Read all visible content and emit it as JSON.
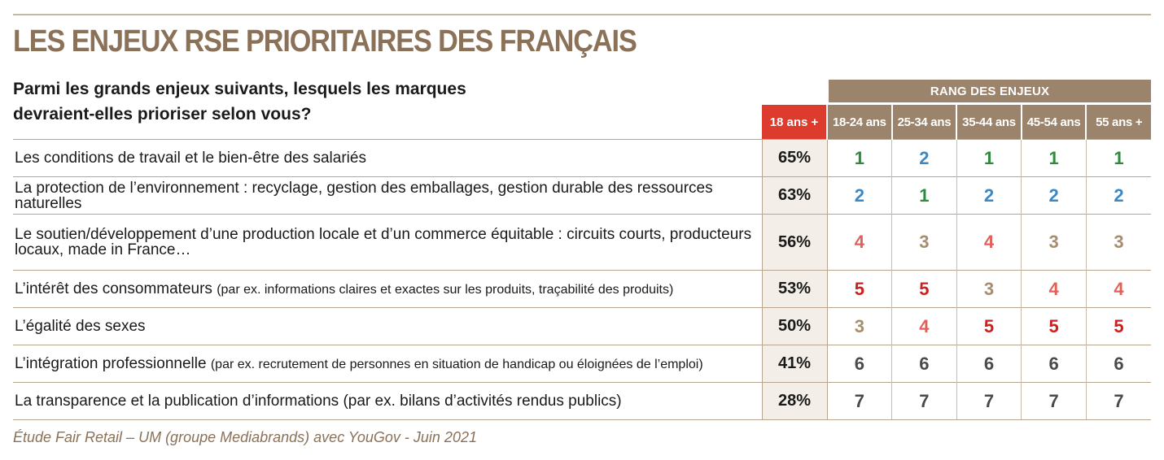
{
  "title": "LES ENJEUX RSE PRIORITAIRES DES FRANÇAIS",
  "question": "Parmi les grands enjeux suivants, lesquels les marques devraient-elles prioriser selon vous?",
  "rank_header": "RANG DES ENJEUX",
  "columns": {
    "total": "18 ans +",
    "age_groups": [
      "18-24 ans",
      "25-34 ans",
      "35-44 ans",
      "45-54 ans",
      "55 ans +"
    ]
  },
  "colors": {
    "title": "#8a7158",
    "header_total": "#dc3b2e",
    "header_rank": "#9b846b",
    "rank_1": "#2e8b3e",
    "rank_2": "#3a88c4",
    "rank_3": "#a68d6e",
    "rank_4": "#e0605a",
    "rank_5": "#cc1f1f",
    "rank_6": "#4a4a4a",
    "rank_7": "#4a4a4a"
  },
  "rows": [
    {
      "label": "Les conditions de travail et le bien-être des salariés",
      "note": "",
      "pct": "65%",
      "ranks": [
        "1",
        "2",
        "1",
        "1",
        "1"
      ]
    },
    {
      "label": "La protection de l’environnement : recyclage, gestion des emballages, gestion durable des ressources naturelles",
      "note": "",
      "pct": "63%",
      "ranks": [
        "2",
        "1",
        "2",
        "2",
        "2"
      ]
    },
    {
      "label": "Le soutien/développement d’une production locale et d’un commerce équitable : circuits courts, producteurs locaux, made in France…",
      "note": "",
      "pct": "56%",
      "ranks": [
        "4",
        "3",
        "4",
        "3",
        "3"
      ]
    },
    {
      "label": "L’intérêt des consommateurs",
      "note": "(par ex. informations claires et exactes sur les produits, traçabilité des produits)",
      "pct": "53%",
      "ranks": [
        "5",
        "5",
        "3",
        "4",
        "4"
      ]
    },
    {
      "label": "L’égalité des sexes",
      "note": "",
      "pct": "50%",
      "ranks": [
        "3",
        "4",
        "5",
        "5",
        "5"
      ]
    },
    {
      "label": "L’intégration professionnelle",
      "note": "(par ex. recrutement de personnes en situation de handicap ou éloignées de l’emploi)",
      "pct": "41%",
      "ranks": [
        "6",
        "6",
        "6",
        "6",
        "6"
      ]
    },
    {
      "label": "La transparence et la publication d’informations (par ex. bilans d’activités rendus publics)",
      "note": "",
      "pct": "28%",
      "ranks": [
        "7",
        "7",
        "7",
        "7",
        "7"
      ]
    }
  ],
  "source": "Étude Fair Retail – UM (groupe Mediabrands) avec YouGov - Juin 2021"
}
